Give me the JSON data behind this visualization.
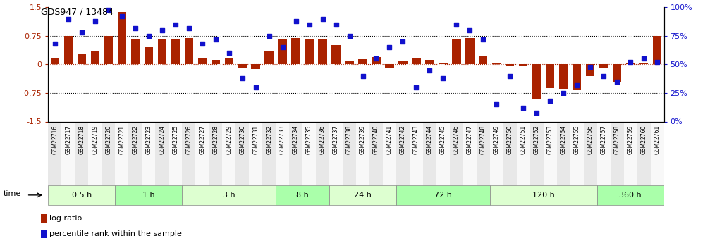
{
  "title": "GDS947 / 13484",
  "samples": [
    "GSM22716",
    "GSM22717",
    "GSM22718",
    "GSM22719",
    "GSM22720",
    "GSM22721",
    "GSM22722",
    "GSM22723",
    "GSM22724",
    "GSM22725",
    "GSM22726",
    "GSM22727",
    "GSM22728",
    "GSM22729",
    "GSM22730",
    "GSM22731",
    "GSM22732",
    "GSM22733",
    "GSM22734",
    "GSM22735",
    "GSM22736",
    "GSM22737",
    "GSM22738",
    "GSM22739",
    "GSM22740",
    "GSM22741",
    "GSM22742",
    "GSM22743",
    "GSM22744",
    "GSM22745",
    "GSM22746",
    "GSM22747",
    "GSM22748",
    "GSM22749",
    "GSM22750",
    "GSM22751",
    "GSM22752",
    "GSM22753",
    "GSM22754",
    "GSM22755",
    "GSM22756",
    "GSM22757",
    "GSM22758",
    "GSM22759",
    "GSM22760",
    "GSM22761"
  ],
  "log_ratio": [
    0.18,
    0.75,
    0.27,
    0.35,
    0.75,
    1.38,
    0.68,
    0.45,
    0.65,
    0.68,
    0.7,
    0.18,
    0.12,
    0.18,
    -0.08,
    -0.12,
    0.35,
    0.68,
    0.7,
    0.67,
    0.68,
    0.5,
    0.08,
    0.13,
    0.2,
    -0.08,
    0.08,
    0.18,
    0.12,
    0.02,
    0.65,
    0.7,
    0.22,
    0.02,
    -0.05,
    -0.02,
    -0.9,
    -0.62,
    -0.65,
    -0.68,
    -0.3,
    -0.08,
    -0.45,
    0.02,
    0.02,
    0.75
  ],
  "percentile_rank": [
    68,
    90,
    78,
    88,
    98,
    92,
    82,
    75,
    80,
    85,
    82,
    68,
    72,
    60,
    38,
    30,
    75,
    65,
    88,
    85,
    90,
    85,
    75,
    40,
    55,
    65,
    70,
    30,
    45,
    38,
    85,
    80,
    72,
    15,
    40,
    12,
    8,
    18,
    25,
    32,
    48,
    40,
    35,
    52,
    55,
    52
  ],
  "time_groups": [
    {
      "label": "0.5 h",
      "start": 0,
      "end": 5
    },
    {
      "label": "1 h",
      "start": 5,
      "end": 10
    },
    {
      "label": "3 h",
      "start": 10,
      "end": 17
    },
    {
      "label": "8 h",
      "start": 17,
      "end": 21
    },
    {
      "label": "24 h",
      "start": 21,
      "end": 26
    },
    {
      "label": "72 h",
      "start": 26,
      "end": 33
    },
    {
      "label": "120 h",
      "start": 33,
      "end": 41
    },
    {
      "label": "360 h",
      "start": 41,
      "end": 46
    }
  ],
  "bar_color": "#AA2200",
  "dot_color": "#1111CC",
  "bg_color": "#FFFFFF",
  "ylim_left": [
    -1.5,
    1.5
  ],
  "ylim_right": [
    0,
    100
  ],
  "yticks_left": [
    -1.5,
    -0.75,
    0.0,
    0.75,
    1.5
  ],
  "yticks_right": [
    0,
    25,
    50,
    75,
    100
  ],
  "group_colors_alt": [
    "#E8FFE8",
    "#CCFFCC",
    "#E8FFE8",
    "#CCFFCC",
    "#AAFFAA",
    "#88EE88",
    "#66DD66",
    "#44CC44"
  ]
}
